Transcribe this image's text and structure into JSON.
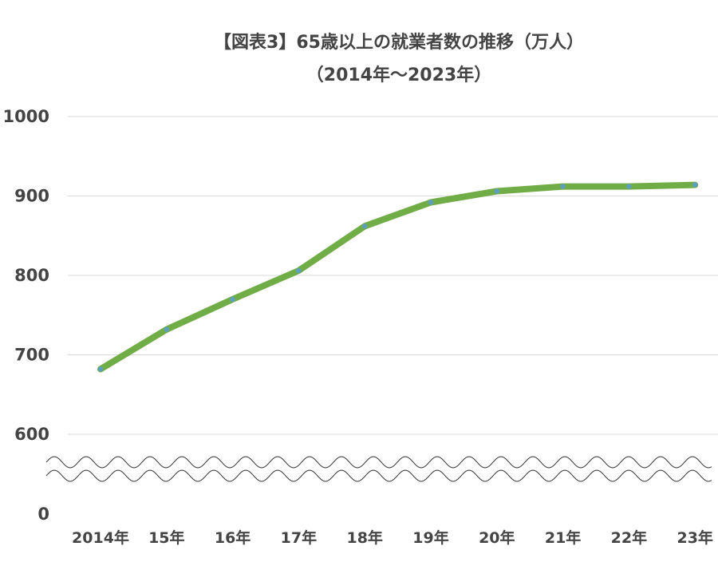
{
  "colors": {
    "series_line": "#70ad47",
    "point_marker": "#5b9bd5",
    "text": "#444444",
    "grid": "#d9d9d9",
    "background": "#ffffff"
  },
  "chart_data": {
    "type": "line",
    "title": "【図表3】65歳以上の就業者数の推移（万人）",
    "subtitle": "（2014年～2023年）",
    "categories": [
      "2014年",
      "15年",
      "16年",
      "17年",
      "18年",
      "19年",
      "20年",
      "21年",
      "22年",
      "23年"
    ],
    "series": [
      {
        "values": [
          682,
          732,
          770,
          806,
          862,
          892,
          906,
          912,
          912,
          914
        ]
      }
    ],
    "y_ticks": [
      0,
      600,
      700,
      800,
      900,
      1000
    ],
    "ylim": [
      600,
      1000
    ],
    "axis_break": {
      "between": [
        0,
        600
      ]
    },
    "xlabel": "",
    "ylabel": "",
    "grid": true,
    "legend": "none"
  }
}
